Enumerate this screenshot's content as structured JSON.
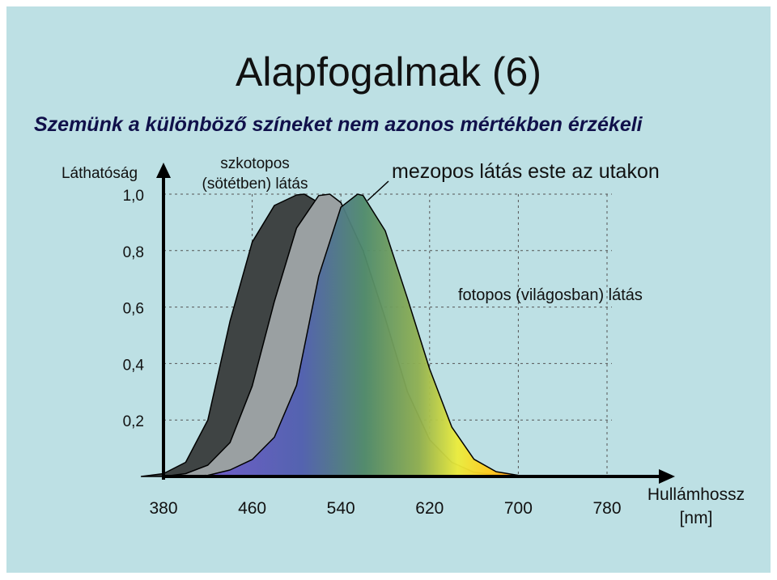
{
  "title": "Alapfogalmak (6)",
  "subtitle": "Szemünk a különböző színeket nem azonos mértékben érzékeli",
  "chart_data": {
    "type": "area",
    "ylabel": "Láthatóság",
    "xlabel_line1": "Hullámhossz",
    "xlabel_line2": "[nm]",
    "x_ticks": [
      "380",
      "460",
      "540",
      "620",
      "700",
      "780"
    ],
    "y_ticks": [
      "1,0",
      "0,8",
      "0,6",
      "0,4",
      "0,2"
    ],
    "xlim": [
      380,
      780
    ],
    "ylim": [
      0,
      1
    ],
    "grid": true,
    "annotations": {
      "scotopic_line1": "szkotopos",
      "scotopic_line2": "(sötétben) látás",
      "mesopic": "mezopos látás este az utakon",
      "photopic": "fotopos (világosban) látás"
    },
    "series": [
      {
        "name": "szkotopos (sötétben) látás",
        "color": "#3f4444",
        "x": [
          360,
          380,
          400,
          420,
          440,
          460,
          480,
          500,
          507,
          520,
          540,
          560,
          580,
          600,
          620,
          640
        ],
        "y": [
          0.0,
          0.01,
          0.05,
          0.2,
          0.55,
          0.83,
          0.96,
          0.997,
          1.0,
          0.97,
          0.65,
          0.28,
          0.08,
          0.02,
          0.005,
          0.0
        ]
      },
      {
        "name": "mezopos látás este az utakon",
        "color": "#9aa0a2",
        "x": [
          380,
          400,
          420,
          440,
          460,
          480,
          500,
          520,
          530,
          540,
          560,
          580,
          600,
          620,
          640,
          660,
          680,
          700
        ],
        "y": [
          0.0,
          0.01,
          0.04,
          0.12,
          0.32,
          0.62,
          0.88,
          0.995,
          1.0,
          0.97,
          0.8,
          0.56,
          0.3,
          0.13,
          0.05,
          0.015,
          0.005,
          0.0
        ]
      },
      {
        "name": "fotopos (világosban) látás",
        "color": "gradient",
        "x": [
          380,
          400,
          420,
          440,
          460,
          480,
          500,
          520,
          540,
          555,
          560,
          580,
          600,
          620,
          640,
          660,
          680,
          700,
          720,
          740,
          760
        ],
        "y": [
          0.0,
          0.0005,
          0.004,
          0.023,
          0.06,
          0.139,
          0.323,
          0.71,
          0.954,
          1.0,
          0.995,
          0.87,
          0.631,
          0.381,
          0.175,
          0.061,
          0.017,
          0.004,
          0.001,
          0.0003,
          0.0
        ]
      }
    ]
  }
}
